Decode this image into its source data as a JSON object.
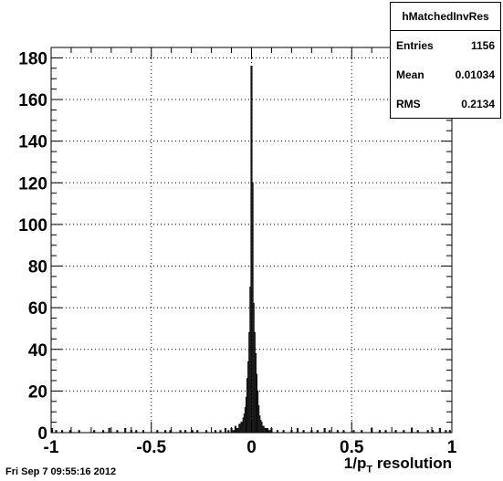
{
  "chart_data": {
    "type": "histogram",
    "xlabel_prefix": "1/p",
    "xlabel_sub": "T",
    "xlabel_suffix": " resolution",
    "xlim": [
      -1,
      1
    ],
    "ylim": [
      0,
      185
    ],
    "xticks": [
      -1,
      -0.5,
      0,
      0.5,
      1
    ],
    "xtick_labels": [
      "-1",
      "-0.5",
      "0",
      "0.5",
      "1"
    ],
    "yticks": [
      0,
      20,
      40,
      60,
      80,
      100,
      120,
      140,
      160,
      180
    ],
    "ytick_labels": [
      "0",
      "20",
      "40",
      "60",
      "80",
      "100",
      "120",
      "140",
      "160",
      "180"
    ],
    "grid": true,
    "bin_width": 0.005,
    "bin_values": [
      [
        -0.1,
        2
      ],
      [
        -0.09,
        1
      ],
      [
        -0.08,
        3
      ],
      [
        -0.07,
        2
      ],
      [
        -0.06,
        4
      ],
      [
        -0.055,
        3
      ],
      [
        -0.05,
        5
      ],
      [
        -0.045,
        4
      ],
      [
        -0.04,
        7
      ],
      [
        -0.035,
        9
      ],
      [
        -0.03,
        12
      ],
      [
        -0.025,
        17
      ],
      [
        -0.02,
        26
      ],
      [
        -0.015,
        34
      ],
      [
        -0.01,
        48
      ],
      [
        -0.005,
        70
      ],
      [
        0.0,
        176
      ],
      [
        0.005,
        120
      ],
      [
        0.01,
        62
      ],
      [
        0.015,
        48
      ],
      [
        0.02,
        38
      ],
      [
        0.025,
        28
      ],
      [
        0.03,
        20
      ],
      [
        0.035,
        13
      ],
      [
        0.04,
        8
      ],
      [
        0.045,
        6
      ],
      [
        0.05,
        5
      ],
      [
        0.055,
        3
      ],
      [
        0.06,
        3
      ],
      [
        0.07,
        2
      ],
      [
        0.08,
        2
      ],
      [
        0.09,
        1
      ],
      [
        0.1,
        2
      ]
    ],
    "noise_bins": [
      [
        -0.995,
        2
      ],
      [
        -0.975,
        1
      ],
      [
        -0.945,
        1
      ],
      [
        -0.905,
        1
      ],
      [
        -0.86,
        1
      ],
      [
        -0.785,
        1
      ],
      [
        -0.74,
        1
      ],
      [
        -0.71,
        2
      ],
      [
        -0.67,
        1
      ],
      [
        -0.63,
        2
      ],
      [
        -0.6,
        1
      ],
      [
        -0.575,
        1
      ],
      [
        -0.54,
        1
      ],
      [
        -0.47,
        1
      ],
      [
        -0.43,
        1
      ],
      [
        -0.405,
        1
      ],
      [
        -0.355,
        1
      ],
      [
        -0.33,
        1
      ],
      [
        -0.295,
        1
      ],
      [
        -0.27,
        1
      ],
      [
        -0.225,
        1
      ],
      [
        -0.18,
        1
      ],
      [
        -0.155,
        1
      ],
      [
        -0.13,
        2
      ],
      [
        -0.115,
        1
      ],
      [
        0.13,
        1
      ],
      [
        0.16,
        1
      ],
      [
        0.2,
        1
      ],
      [
        0.23,
        2
      ],
      [
        0.26,
        1
      ],
      [
        0.3,
        1
      ],
      [
        0.33,
        1
      ],
      [
        0.365,
        2
      ],
      [
        0.39,
        1
      ],
      [
        0.43,
        1
      ],
      [
        0.46,
        1
      ],
      [
        0.51,
        1
      ],
      [
        0.55,
        1
      ],
      [
        0.6,
        2
      ],
      [
        0.64,
        1
      ],
      [
        0.67,
        1
      ],
      [
        0.72,
        1
      ],
      [
        0.76,
        1
      ],
      [
        0.8,
        2
      ],
      [
        0.83,
        1
      ],
      [
        0.88,
        1
      ],
      [
        0.905,
        1
      ],
      [
        0.94,
        2
      ],
      [
        0.97,
        1
      ],
      [
        0.99,
        1
      ]
    ]
  },
  "stats": {
    "title": "hMatchedInvRes",
    "entries_label": "Entries",
    "entries_value": "1156",
    "mean_label": "Mean",
    "mean_value": "0.01034",
    "rms_label": "RMS",
    "rms_value": "0.2134"
  },
  "footer": "Fri Sep  7 09:55:16 2012"
}
